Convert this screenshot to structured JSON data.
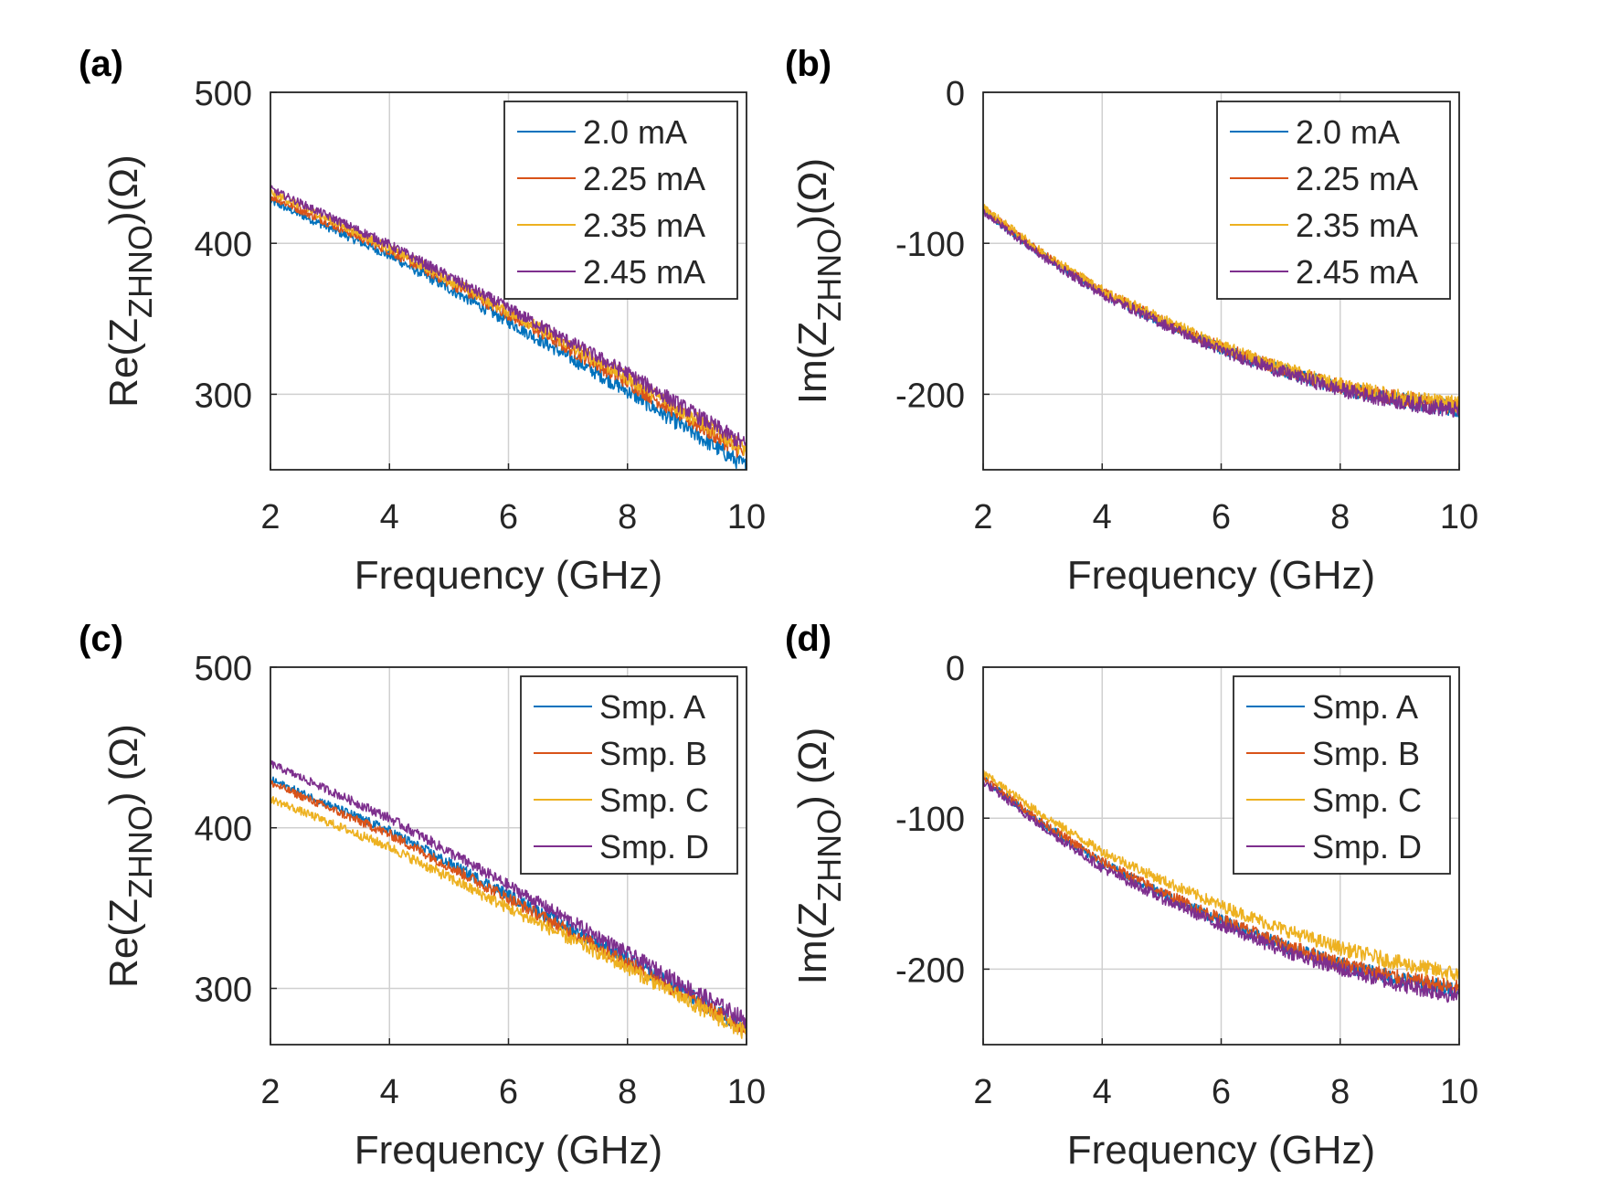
{
  "figure": {
    "colors": {
      "blue": "#0072BD",
      "orange": "#D95319",
      "yellow": "#EDB120",
      "purple": "#7E2F8E",
      "axis": "#262626",
      "grid": "#D0D0D0"
    },
    "panels_labels": [
      "(a)",
      "(b)",
      "(c)",
      "(d)"
    ]
  },
  "chart_data": [
    {
      "panel": "(a)",
      "type": "line",
      "xlabel": "Frequency (GHz)",
      "ylabel": "Re(Z_ZHNO)(Ω)",
      "ylabel_parts": {
        "pre": "Re(Z",
        "sub": "ZHNO",
        "post": ")(Ω)"
      },
      "xlim": [
        2,
        10
      ],
      "ylim": [
        250,
        500
      ],
      "xticks": [
        "2",
        "4",
        "6",
        "8",
        "10"
      ],
      "yticks": [
        "300",
        "400",
        "500"
      ],
      "ytick_values": [
        300,
        400,
        500
      ],
      "grid": true,
      "legend_position": "top-right",
      "series": [
        {
          "name": "2.0 mA",
          "color_key": "blue",
          "x": [
            2,
            4,
            6,
            8,
            10
          ],
          "values": [
            428,
            392,
            348,
            302,
            252
          ]
        },
        {
          "name": "2.25 mA",
          "color_key": "orange",
          "x": [
            2,
            4,
            6,
            8,
            10
          ],
          "values": [
            431,
            395,
            353,
            308,
            260
          ]
        },
        {
          "name": "2.35 mA",
          "color_key": "yellow",
          "x": [
            2,
            4,
            6,
            8,
            10
          ],
          "values": [
            434,
            397,
            355,
            311,
            263
          ]
        },
        {
          "name": "2.45 mA",
          "color_key": "purple",
          "x": [
            2,
            4,
            6,
            8,
            10
          ],
          "values": [
            436,
            399,
            357,
            314,
            266
          ]
        }
      ]
    },
    {
      "panel": "(b)",
      "type": "line",
      "xlabel": "Frequency (GHz)",
      "ylabel": "Im(Z_ZHNO)(Ω)",
      "ylabel_parts": {
        "pre": "Im(Z",
        "sub": "ZHNO",
        "post": ")(Ω)"
      },
      "xlim": [
        2,
        10
      ],
      "ylim": [
        -250,
        0
      ],
      "xticks": [
        "2",
        "4",
        "6",
        "8",
        "10"
      ],
      "yticks": [
        "-200",
        "-100",
        "0"
      ],
      "ytick_values": [
        -200,
        -100,
        0
      ],
      "grid": true,
      "legend_position": "top-right",
      "series": [
        {
          "name": "2.0 mA",
          "color_key": "blue",
          "x": [
            2,
            3,
            4,
            5,
            6,
            7,
            8,
            9,
            10
          ],
          "values": [
            -78,
            -108,
            -133,
            -152,
            -170,
            -184,
            -196,
            -204,
            -210
          ]
        },
        {
          "name": "2.25 mA",
          "color_key": "orange",
          "x": [
            2,
            3,
            4,
            5,
            6,
            7,
            8,
            9,
            10
          ],
          "values": [
            -77,
            -107,
            -132,
            -151,
            -169,
            -183,
            -195,
            -203,
            -208
          ]
        },
        {
          "name": "2.35 mA",
          "color_key": "yellow",
          "x": [
            2,
            3,
            4,
            5,
            6,
            7,
            8,
            9,
            10
          ],
          "values": [
            -76,
            -106,
            -131,
            -150,
            -168,
            -182,
            -194,
            -202,
            -207
          ]
        },
        {
          "name": "2.45 mA",
          "color_key": "purple",
          "x": [
            2,
            3,
            4,
            5,
            6,
            7,
            8,
            9,
            10
          ],
          "values": [
            -79,
            -109,
            -134,
            -153,
            -171,
            -185,
            -197,
            -205,
            -211
          ]
        }
      ]
    },
    {
      "panel": "(c)",
      "type": "line",
      "xlabel": "Frequency (GHz)",
      "ylabel": "Re(Z_ZHNO) (Ω)",
      "ylabel_parts": {
        "pre": "Re(Z",
        "sub": "ZHNO",
        "post": ") (Ω)"
      },
      "xlim": [
        2,
        10
      ],
      "ylim": [
        265,
        500
      ],
      "xticks": [
        "2",
        "4",
        "6",
        "8",
        "10"
      ],
      "yticks": [
        "300",
        "400",
        "500"
      ],
      "ytick_values": [
        300,
        400,
        500
      ],
      "grid": true,
      "legend_position": "top-right",
      "series": [
        {
          "name": "Smp. A",
          "color_key": "blue",
          "x": [
            2,
            4,
            6,
            8,
            10
          ],
          "values": [
            430,
            398,
            358,
            318,
            275
          ]
        },
        {
          "name": "Smp. B",
          "color_key": "orange",
          "x": [
            2,
            4,
            6,
            8,
            10
          ],
          "values": [
            428,
            396,
            356,
            316,
            274
          ]
        },
        {
          "name": "Smp. C",
          "color_key": "yellow",
          "x": [
            2,
            4,
            6,
            8,
            10
          ],
          "values": [
            418,
            388,
            350,
            313,
            272
          ]
        },
        {
          "name": "Smp. D",
          "color_key": "purple",
          "x": [
            2,
            4,
            6,
            8,
            10
          ],
          "values": [
            440,
            406,
            364,
            322,
            280
          ]
        }
      ]
    },
    {
      "panel": "(d)",
      "type": "line",
      "xlabel": "Frequency (GHz)",
      "ylabel": "Im(Z_ZHNO) (Ω)",
      "ylabel_parts": {
        "pre": "Im(Z",
        "sub": "ZHNO",
        "post": ") (Ω)"
      },
      "xlim": [
        2,
        10
      ],
      "ylim": [
        -250,
        0
      ],
      "xticks": [
        "2",
        "4",
        "6",
        "8",
        "10"
      ],
      "yticks": [
        "-200",
        "-100",
        "0"
      ],
      "ytick_values": [
        -200,
        -100,
        0
      ],
      "grid": true,
      "legend_position": "top-right",
      "series": [
        {
          "name": "Smp. A",
          "color_key": "blue",
          "x": [
            2,
            3,
            4,
            5,
            6,
            7,
            8,
            9,
            10
          ],
          "values": [
            -74,
            -104,
            -130,
            -150,
            -168,
            -184,
            -197,
            -207,
            -214
          ]
        },
        {
          "name": "Smp. B",
          "color_key": "orange",
          "x": [
            2,
            3,
            4,
            5,
            6,
            7,
            8,
            9,
            10
          ],
          "values": [
            -73,
            -103,
            -129,
            -149,
            -167,
            -183,
            -196,
            -206,
            -213
          ]
        },
        {
          "name": "Smp. C",
          "color_key": "yellow",
          "x": [
            2,
            3,
            4,
            5,
            6,
            7,
            8,
            9,
            10
          ],
          "values": [
            -70,
            -98,
            -122,
            -141,
            -158,
            -173,
            -186,
            -196,
            -204
          ]
        },
        {
          "name": "Smp. D",
          "color_key": "purple",
          "x": [
            2,
            3,
            4,
            5,
            6,
            7,
            8,
            9,
            10
          ],
          "values": [
            -76,
            -106,
            -133,
            -153,
            -171,
            -187,
            -200,
            -210,
            -218
          ]
        }
      ]
    }
  ]
}
